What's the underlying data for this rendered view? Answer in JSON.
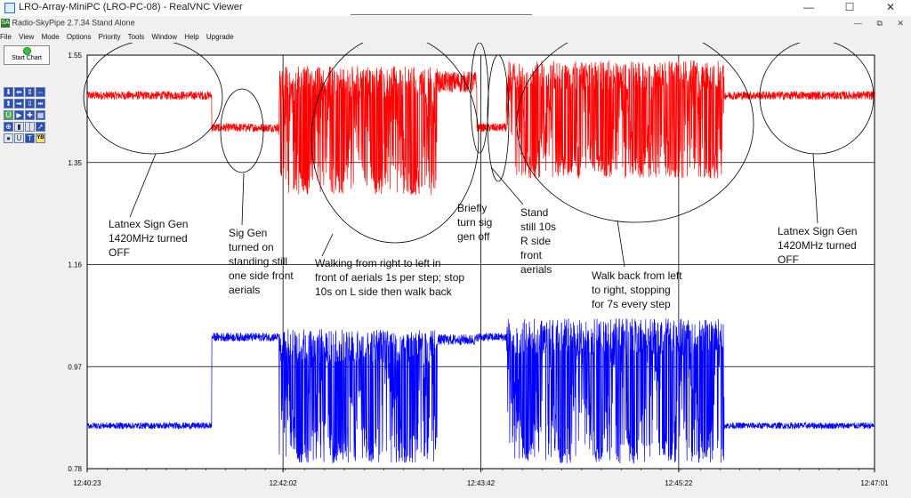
{
  "window": {
    "title": "LRO-Array-MiniPC (LRO-PC-08) - RealVNC Viewer",
    "controls": [
      "—",
      "☐",
      "✕"
    ]
  },
  "app": {
    "name": "Radio-SkyPipe",
    "version": "2.7.34",
    "mode": "Stand Alone",
    "menus": [
      "File",
      "View",
      "Mode",
      "Options",
      "Priority",
      "Tools",
      "Window",
      "Help",
      "Upgrade"
    ],
    "child_controls": [
      "—",
      "⧉",
      "✕"
    ]
  },
  "toolbar": {
    "start_label": "Start Chart",
    "icons": [
      "arrow-down-icon",
      "arrow-left-icon",
      "arrow-updown-icon",
      "arrow-leftright-icon",
      "arrow-up-icon",
      "arrow-right-icon",
      "compress-vertical-icon",
      "compress-horizontal-icon",
      "u-icon",
      "play-icon",
      "crosshair-icon",
      "grid-icon",
      "target-icon",
      "marker-icon",
      "vertical-line-icon",
      "cursor-icon",
      "record-icon",
      "u-box-icon",
      "t-icon",
      "yb-icon"
    ],
    "icon_glyphs": [
      "⬇",
      "⬅",
      "⇕",
      "⇔",
      "⬆",
      "➡",
      "⇳",
      "⇹",
      "Ü",
      "▶",
      "✚",
      "▦",
      "⊕",
      "▮",
      "│",
      "➚",
      "●",
      "U",
      "T",
      "YB"
    ]
  },
  "colors": {
    "red_trace": "#ff0000",
    "blue_trace": "#0000ff",
    "plot_bg": "#ffffff",
    "grid": "#000000"
  },
  "chart_data": {
    "type": "line",
    "y_ticks": [
      "1.55",
      "1.35",
      "1.16",
      "0.97",
      "0.78"
    ],
    "y_tick_values": [
      1.55,
      1.35,
      1.16,
      0.97,
      0.78
    ],
    "x_ticks": [
      "12:40:23",
      "12:42:02",
      "12:43:42",
      "12:45:22",
      "12:47:01"
    ],
    "ylim": [
      0.78,
      1.55
    ],
    "grid": true,
    "series": [
      {
        "color": "#ff0000",
        "segments": [
          {
            "t": [
              "12:40:23",
              "12:41:26"
            ],
            "mode": "flat",
            "level": 1.475,
            "noise": 0.008
          },
          {
            "t": [
              "12:41:26",
              "12:42:00"
            ],
            "mode": "flat",
            "level": 1.415,
            "noise": 0.008
          },
          {
            "t": [
              "12:42:00",
              "12:43:20"
            ],
            "mode": "osc",
            "hi": 1.53,
            "lo": 1.29
          },
          {
            "t": [
              "12:43:20",
              "12:43:40"
            ],
            "mode": "flat",
            "level": 1.5,
            "noise": 0.02
          },
          {
            "t": [
              "12:43:40",
              "12:43:55"
            ],
            "mode": "flat",
            "level": 1.415,
            "noise": 0.008
          },
          {
            "t": [
              "12:43:55",
              "12:45:45"
            ],
            "mode": "osc",
            "hi": 1.54,
            "lo": 1.32
          },
          {
            "t": [
              "12:45:45",
              "12:47:01"
            ],
            "mode": "flat",
            "level": 1.475,
            "noise": 0.008
          }
        ]
      },
      {
        "color": "#0000ff",
        "segments": [
          {
            "t": [
              "12:40:23",
              "12:41:26"
            ],
            "mode": "flat",
            "level": 0.86,
            "noise": 0.006
          },
          {
            "t": [
              "12:41:26",
              "12:42:00"
            ],
            "mode": "flat",
            "level": 1.025,
            "noise": 0.008
          },
          {
            "t": [
              "12:42:00",
              "12:43:20"
            ],
            "mode": "osc",
            "hi": 1.04,
            "lo": 0.79
          },
          {
            "t": [
              "12:43:20",
              "12:43:40"
            ],
            "mode": "flat",
            "level": 1.02,
            "noise": 0.01
          },
          {
            "t": [
              "12:43:40",
              "12:43:55"
            ],
            "mode": "flat",
            "level": 1.025,
            "noise": 0.008
          },
          {
            "t": [
              "12:43:55",
              "12:45:45"
            ],
            "mode": "osc",
            "hi": 1.06,
            "lo": 0.79
          },
          {
            "t": [
              "12:45:45",
              "12:47:01"
            ],
            "mode": "flat",
            "level": 0.86,
            "noise": 0.006
          }
        ]
      }
    ],
    "annotations": [
      {
        "lines": [
          "Latnex Sign Gen",
          "1420MHz turned",
          "OFF"
        ]
      },
      {
        "lines": [
          "Sig Gen",
          "turned on",
          "standing still",
          "one side front",
          "aerials"
        ]
      },
      {
        "lines": [
          "Walking from right to left in",
          "front of aerials 1s per step; stop",
          "10s on L side then walk back"
        ]
      },
      {
        "lines": [
          "Briefly",
          "turn sig",
          "gen off"
        ]
      },
      {
        "lines": [
          "Stand",
          "still 10s",
          "R side",
          "front",
          "aerials"
        ]
      },
      {
        "lines": [
          "Walk back from left",
          "to right, stopping",
          "for 7s every step"
        ]
      },
      {
        "lines": [
          "Latnex Sign Gen",
          "1420MHz turned",
          "OFF"
        ]
      }
    ]
  }
}
